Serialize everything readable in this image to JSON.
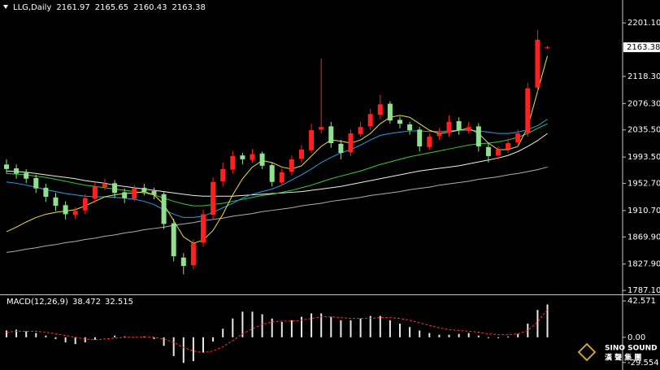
{
  "chart_data": [
    {
      "type": "candlestick",
      "symbol": "LLG,Daily",
      "open": [
        1982,
        1976,
        1969,
        1961,
        1946,
        1931,
        1919,
        1904,
        1911,
        1929,
        1947,
        1953,
        1939,
        1929,
        1946,
        1941,
        1936,
        1891,
        1838,
        1826,
        1861,
        1904,
        1956,
        1974,
        1996,
        1989,
        1999,
        1981,
        1954,
        1971,
        1991,
        2004,
        2036,
        2041,
        2014,
        2001,
        2029,
        2041,
        2059,
        2076,
        2051,
        2044,
        2036,
        2009,
        2026,
        2031,
        2049,
        2034,
        2041,
        2009,
        1996,
        2006,
        2016,
        2031,
        2101,
        2161.97
      ],
      "high": [
        1990,
        1982,
        1975,
        1966,
        1952,
        1938,
        1925,
        1916,
        1936,
        1955,
        1960,
        1958,
        1945,
        1950,
        1952,
        1946,
        1940,
        1898,
        1845,
        1866,
        1912,
        1962,
        1985,
        2003,
        2000,
        2006,
        2002,
        1985,
        1976,
        1996,
        2012,
        2045,
        2146,
        2048,
        2020,
        2036,
        2048,
        2068,
        2090,
        2080,
        2056,
        2048,
        2040,
        2030,
        2038,
        2058,
        2055,
        2048,
        2046,
        2015,
        2010,
        2022,
        2036,
        2108,
        2190,
        2165.65
      ],
      "low": [
        1968,
        1960,
        1953,
        1938,
        1924,
        1910,
        1897,
        1898,
        1905,
        1923,
        1942,
        1930,
        1922,
        1925,
        1934,
        1928,
        1882,
        1832,
        1812,
        1820,
        1855,
        1898,
        1948,
        1968,
        1982,
        1985,
        1975,
        1948,
        1950,
        1965,
        1985,
        2000,
        2030,
        2008,
        1990,
        1995,
        2025,
        2035,
        2052,
        2045,
        2038,
        2028,
        2002,
        2005,
        2020,
        2025,
        2028,
        2030,
        2002,
        1985,
        1990,
        2000,
        2010,
        2025,
        2095,
        2160.43
      ],
      "close": [
        1975,
        1968,
        1960,
        1945,
        1932,
        1918,
        1905,
        1910,
        1930,
        1948,
        1952,
        1938,
        1930,
        1945,
        1940,
        1935,
        1890,
        1840,
        1825,
        1860,
        1905,
        1955,
        1975,
        1995,
        1990,
        1998,
        1980,
        1955,
        1970,
        1990,
        2005,
        2035,
        2040,
        2015,
        2000,
        2030,
        2040,
        2060,
        2075,
        2050,
        2045,
        2035,
        2010,
        2025,
        2030,
        2048,
        2035,
        2040,
        2010,
        1995,
        2005,
        2015,
        2030,
        2100,
        2175,
        2163.38
      ],
      "up_color": "#ff2020",
      "down_color": "#8fe08f",
      "series": [
        {
          "color": "#b0b0b0",
          "values": [
            1846,
            1848,
            1851,
            1853,
            1856,
            1858,
            1861,
            1863,
            1866,
            1868,
            1871,
            1873,
            1876,
            1878,
            1881,
            1883,
            1885,
            1888,
            1890,
            1892,
            1895,
            1897,
            1899,
            1902,
            1904,
            1906,
            1909,
            1911,
            1913,
            1915,
            1918,
            1920,
            1922,
            1925,
            1927,
            1929,
            1931,
            1934,
            1936,
            1938,
            1940,
            1943,
            1945,
            1947,
            1950,
            1952,
            1954,
            1956,
            1959,
            1961,
            1963,
            1966,
            1968,
            1971,
            1974,
            1978
          ]
        },
        {
          "color": "#f0f0e0",
          "values": [
            1972,
            1971,
            1970,
            1968,
            1966,
            1964,
            1962,
            1960,
            1957,
            1955,
            1953,
            1950,
            1948,
            1946,
            1944,
            1942,
            1940,
            1938,
            1936,
            1934,
            1933,
            1933,
            1933,
            1933,
            1934,
            1935,
            1936,
            1937,
            1938,
            1939,
            1940,
            1942,
            1944,
            1946,
            1948,
            1951,
            1954,
            1957,
            1960,
            1963,
            1966,
            1969,
            1972,
            1974,
            1976,
            1978,
            1980,
            1983,
            1986,
            1989,
            1992,
            1996,
            2002,
            2010,
            2019,
            2030
          ]
        },
        {
          "color": "#3cc83c",
          "values": [
            1968,
            1967,
            1966,
            1964,
            1962,
            1959,
            1956,
            1953,
            1950,
            1948,
            1946,
            1944,
            1942,
            1940,
            1938,
            1935,
            1930,
            1925,
            1921,
            1918,
            1918,
            1920,
            1922,
            1925,
            1928,
            1931,
            1934,
            1936,
            1939,
            1942,
            1946,
            1950,
            1955,
            1960,
            1964,
            1968,
            1972,
            1977,
            1982,
            1986,
            1990,
            1994,
            1997,
            2000,
            2003,
            2006,
            2009,
            2012,
            2014,
            2015,
            2017,
            2020,
            2024,
            2030,
            2038,
            2045
          ]
        },
        {
          "color": "#2a9fe0",
          "values": [
            1955,
            1953,
            1950,
            1947,
            1943,
            1940,
            1937,
            1935,
            1933,
            1932,
            1932,
            1931,
            1930,
            1928,
            1925,
            1920,
            1912,
            1905,
            1900,
            1900,
            1902,
            1908,
            1915,
            1922,
            1930,
            1936,
            1940,
            1944,
            1950,
            1958,
            1966,
            1975,
            1985,
            1993,
            2000,
            2005,
            2012,
            2020,
            2027,
            2030,
            2032,
            2034,
            2034,
            2033,
            2033,
            2034,
            2035,
            2035,
            2034,
            2032,
            2030,
            2030,
            2032,
            2036,
            2042,
            2052
          ]
        },
        {
          "color": "#f0e040",
          "values": [
            1878,
            1885,
            1893,
            1900,
            1905,
            1908,
            1910,
            1912,
            1918,
            1925,
            1932,
            1935,
            1937,
            1938,
            1940,
            1935,
            1920,
            1895,
            1870,
            1860,
            1865,
            1880,
            1905,
            1935,
            1960,
            1978,
            1988,
            1985,
            1978,
            1975,
            1980,
            1995,
            2010,
            2020,
            2018,
            2015,
            2020,
            2030,
            2045,
            2055,
            2058,
            2055,
            2045,
            2035,
            2030,
            2032,
            2035,
            2038,
            2030,
            2015,
            2005,
            2005,
            2010,
            2040,
            2095,
            2150
          ]
        }
      ],
      "ylim": [
        1781,
        2234
      ],
      "yticks": [
        {
          "value": 2201.1,
          "label": "2201.10"
        },
        {
          "value": 2118.3,
          "label": "2118.30"
        },
        {
          "value": 2076.3,
          "label": "2076.30"
        },
        {
          "value": 2035.5,
          "label": "2035.50"
        },
        {
          "value": 1993.5,
          "label": "1993.50"
        },
        {
          "value": 1952.7,
          "label": "1952.70"
        },
        {
          "value": 1910.7,
          "label": "1910.70"
        },
        {
          "value": 1869.9,
          "label": "1869.90"
        },
        {
          "value": 1827.9,
          "label": "1827.90"
        },
        {
          "value": 1787.1,
          "label": "1787.10"
        }
      ]
    },
    {
      "type": "macd",
      "label": "MACD(12,26,9)",
      "histogram": [
        8,
        9,
        7,
        5,
        2,
        -2,
        -6,
        -8,
        -6,
        -3,
        0,
        2,
        1,
        0,
        1,
        -2,
        -10,
        -22,
        -30,
        -28,
        -18,
        -5,
        10,
        22,
        30,
        30,
        27,
        22,
        18,
        20,
        24,
        28,
        28,
        24,
        20,
        20,
        22,
        25,
        25,
        20,
        16,
        12,
        8,
        5,
        3,
        3,
        4,
        5,
        2,
        -1,
        -1,
        1,
        4,
        16,
        32,
        38.472
      ],
      "signal": [
        6,
        7,
        7,
        7,
        6,
        4,
        2,
        0,
        -2,
        -3,
        -2,
        -1,
        0,
        0,
        0,
        0,
        -2,
        -6,
        -12,
        -16,
        -18,
        -16,
        -11,
        -4,
        4,
        10,
        15,
        18,
        19,
        19,
        20,
        22,
        24,
        24,
        23,
        22,
        22,
        22,
        23,
        23,
        22,
        20,
        17,
        14,
        11,
        9,
        8,
        7,
        6,
        4,
        3,
        3,
        4,
        8,
        18,
        32.515
      ],
      "histogram_color": "#e8e8e8",
      "signal_color": "#ff3030",
      "ylim": [
        -38.3,
        49.3
      ],
      "yticks": [
        42.571,
        {
          "value": 0,
          "label": "0.00"
        },
        -29.554
      ]
    }
  ],
  "logo": {
    "name": "SINO SOUND",
    "subtitle": "漢 聲 集 團"
  }
}
